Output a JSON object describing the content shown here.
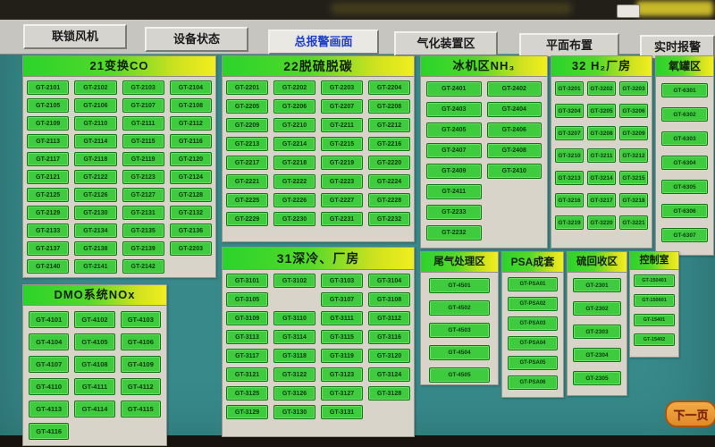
{
  "toolbar": {
    "buttons": [
      {
        "label": "联锁风机",
        "active": false
      },
      {
        "label": "设备状态",
        "active": false
      },
      {
        "label": "总报警画面",
        "active": true
      },
      {
        "label": "气化装置区",
        "active": false
      },
      {
        "label": "平面布置",
        "active": false
      },
      {
        "label": "实时报警",
        "active": false
      }
    ]
  },
  "colors": {
    "background_teal": "#37898a",
    "panel_gray": "#d8d4ca",
    "header_green": "#2bd32b",
    "header_yellow": "#f2ee1e",
    "detector_green": "#3ecb3e",
    "active_tab_blue": "#2040c8",
    "next_button_orange": "#e08a28"
  },
  "panels": [
    {
      "id": "panel-21",
      "title": "21变换CO",
      "cols": 4,
      "buttons": [
        "GT-2101",
        "GT-2102",
        "GT-2103",
        "GT-2104",
        "GT-2105",
        "GT-2106",
        "GT-2107",
        "GT-2108",
        "GT-2109",
        "GT-2110",
        "GT-2111",
        "GT-2112",
        "GT-2113",
        "GT-2114",
        "GT-2115",
        "GT-2116",
        "GT-2117",
        "GT-2118",
        "GT-2119",
        "GT-2120",
        "GT-2121",
        "GT-2122",
        "GT-2123",
        "GT-2124",
        "GT-2125",
        "GT-2126",
        "GT-2127",
        "GT-2128",
        "GT-2129",
        "GT-2130",
        "GT-2131",
        "GT-2132",
        "GT-2133",
        "GT-2134",
        "GT-2135",
        "GT-2136",
        "GT-2137",
        "GT-2138",
        "GT-2139",
        "GT-2203",
        "GT-2140",
        "GT-2141",
        "GT-2142"
      ]
    },
    {
      "id": "panel-dmo",
      "title": "DMO系统NOx",
      "cols": 3,
      "buttons": [
        "GT-4101",
        "GT-4102",
        "GT-4103",
        "GT-4104",
        "GT-4105",
        "GT-4106",
        "GT-4107",
        "GT-4108",
        "GT-4109",
        "GT-4110",
        "GT-4111",
        "GT-4112",
        "GT-4113",
        "GT-4114",
        "GT-4115",
        "GT-4116"
      ]
    },
    {
      "id": "panel-22",
      "title": "22脱硫脱碳",
      "cols": 4,
      "buttons": [
        "GT-2201",
        "GT-2202",
        "GT-2203",
        "GT-2204",
        "GT-2205",
        "GT-2206",
        "GT-2207",
        "GT-2208",
        "GT-2209",
        "GT-2210",
        "GT-2211",
        "GT-2212",
        "GT-2213",
        "GT-2214",
        "GT-2215",
        "GT-2216",
        "GT-2217",
        "GT-2218",
        "GT-2219",
        "GT-2220",
        "GT-2221",
        "GT-2222",
        "GT-2223",
        "GT-2224",
        "GT-2225",
        "GT-2226",
        "GT-2227",
        "GT-2228",
        "GT-2229",
        "GT-2230",
        "GT-2231",
        "GT-2232"
      ]
    },
    {
      "id": "panel-31",
      "title": "31深冷、厂房",
      "cols": 4,
      "buttons": [
        "GT-3101",
        "GT-3102",
        "GT-3103",
        "GT-3104",
        "GT-3105",
        null,
        "GT-3107",
        "GT-3108",
        "GT-3109",
        "GT-3110",
        "GT-3111",
        "GT-3112",
        "GT-3113",
        "GT-3114",
        "GT-3115",
        "GT-3116",
        "GT-3117",
        "GT-3118",
        "GT-3119",
        "GT-3120",
        "GT-3121",
        "GT-3122",
        "GT-3123",
        "GT-3124",
        "GT-3125",
        "GT-3126",
        "GT-3127",
        "GT-3128",
        "GT-3129",
        "GT-3130",
        "GT-3131"
      ]
    },
    {
      "id": "panel-nh3",
      "title": "冰机区NH₃",
      "cols": 2,
      "buttons": [
        "GT-2401",
        "GT-2402",
        "GT-2403",
        "GT-2404",
        "GT-2405",
        "GT-2406",
        "GT-2407",
        "GT-2408",
        "GT-2409",
        "GT-2410",
        "GT-2411",
        null,
        "GT-2233",
        null,
        "GT-2232",
        null
      ]
    },
    {
      "id": "panel-32",
      "title": "32 H₂厂房",
      "cols": 3,
      "buttons": [
        "GT-3201",
        "GT-3202",
        "GT-3203",
        "GT-3204",
        "GT-3205",
        "GT-3206",
        "GT-3207",
        "GT-3208",
        "GT-3209",
        "GT-3210",
        "GT-3211",
        "GT-3212",
        "GT-3213",
        "GT-3214",
        "GT-3215",
        "GT-3216",
        "GT-3217",
        "GT-3218",
        "GT-3219",
        "GT-3220",
        "GT-3221"
      ]
    },
    {
      "id": "panel-o2",
      "title": "氧罐区",
      "cols": 1,
      "buttons": [
        "GT-6301",
        "GT-6302",
        "GT-6303",
        "GT-6304",
        "GT-6305",
        "GT-6306",
        "GT-6307"
      ]
    },
    {
      "id": "panel-tail",
      "title": "尾气处理区",
      "cols": 1,
      "buttons": [
        "GT-4501",
        "GT-4502",
        "GT-4503",
        "GT-4504",
        "GT-4505"
      ]
    },
    {
      "id": "panel-psa",
      "title": "PSA成套",
      "cols": 1,
      "buttons": [
        "GT-PSA01",
        "GT-PSA02",
        "GT-PSA03",
        "GT-PSA04",
        "GT-PSA05",
        "GT-PSA06"
      ]
    },
    {
      "id": "panel-sulfur",
      "title": "硫回收区",
      "cols": 1,
      "buttons": [
        "GT-2301",
        "GT-2302",
        "GT-2303",
        "GT-2304",
        "GT-2305"
      ]
    },
    {
      "id": "panel-control",
      "title": "控制室",
      "cols": 1,
      "buttons": [
        "GT-150401",
        "GT-150601",
        "GT-15401",
        "GT-15402"
      ]
    }
  ],
  "next_button": {
    "label": "下一页"
  }
}
